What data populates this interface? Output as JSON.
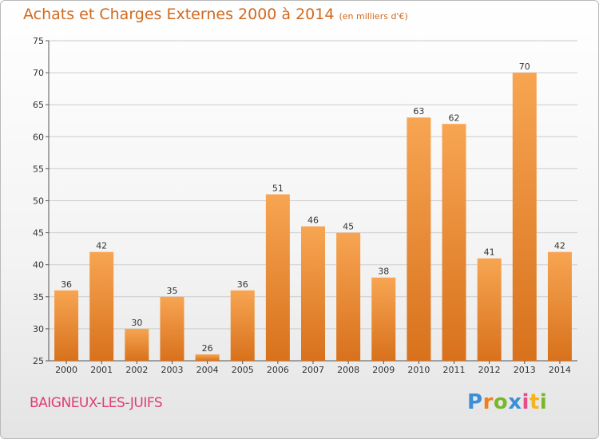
{
  "header": {
    "title": "Achats et Charges Externes 2000 à 2014",
    "subtitle": "(en milliers d'€)"
  },
  "footer": {
    "commune": "BAIGNEUX-LES-JUIFS",
    "logo_letters": [
      "P",
      "r",
      "o",
      "x",
      "i",
      "t",
      "i"
    ]
  },
  "colors": {
    "bar_top": "#f7a552",
    "bar_bottom": "#d8711c",
    "title": "#d2691e",
    "commune": "#e03c73",
    "grid": "#cccccc"
  },
  "chart_data": {
    "type": "bar",
    "title": "Achats et Charges Externes 2000 à 2014",
    "subtitle": "(en milliers d'€)",
    "xlabel": "",
    "ylabel": "",
    "categories": [
      "2000",
      "2001",
      "2002",
      "2003",
      "2004",
      "2005",
      "2006",
      "2007",
      "2008",
      "2009",
      "2010",
      "2011",
      "2012",
      "2013",
      "2014"
    ],
    "values": [
      36,
      42,
      30,
      35,
      26,
      36,
      51,
      46,
      45,
      38,
      63,
      62,
      41,
      70,
      42
    ],
    "ylim": [
      25,
      75
    ],
    "yticks": [
      25,
      30,
      35,
      40,
      45,
      50,
      55,
      60,
      65,
      70,
      75
    ],
    "grid": true,
    "legend": "none"
  }
}
